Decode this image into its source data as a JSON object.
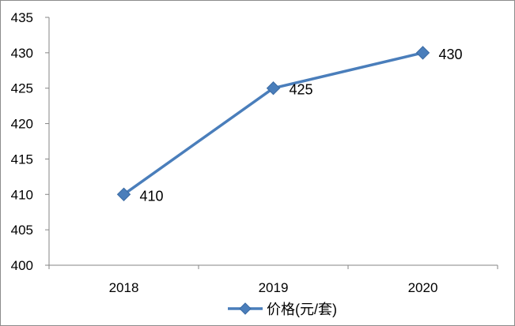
{
  "chart_data": {
    "type": "line",
    "categories": [
      "2018",
      "2019",
      "2020"
    ],
    "series": [
      {
        "name": "价格(元/套)",
        "values": [
          410,
          425,
          430
        ],
        "data_labels": [
          "410",
          "425",
          "430"
        ],
        "color": "#4a7ebb",
        "marker": "diamond"
      }
    ],
    "y_ticks": [
      "400",
      "405",
      "410",
      "415",
      "420",
      "425",
      "430",
      "435"
    ],
    "ylim": [
      400,
      435
    ],
    "grid": false,
    "legend": "bottom-center"
  }
}
